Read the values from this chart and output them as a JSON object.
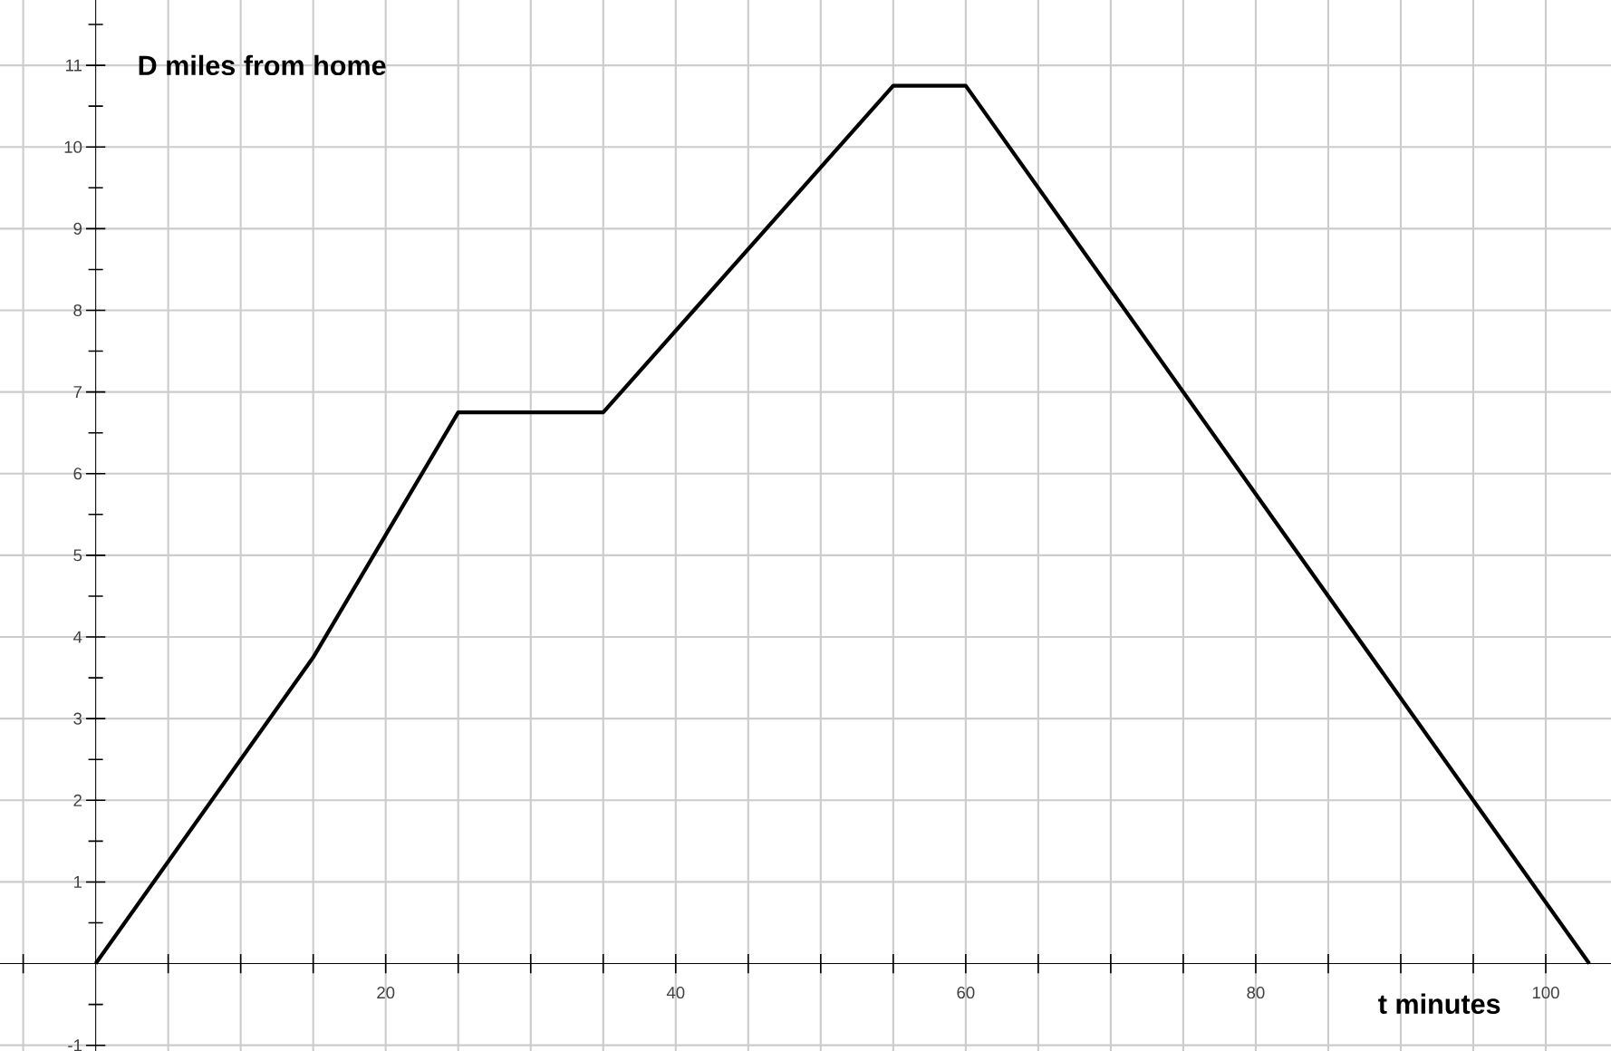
{
  "chart_data": {
    "type": "line",
    "xlabel": "t minutes",
    "ylabel": "D miles from home",
    "x": [
      0,
      15,
      25,
      35,
      55,
      60,
      103
    ],
    "series": [
      {
        "color": "#000000",
        "values": [
          0,
          3.75,
          6.75,
          6.75,
          10.75,
          10.75,
          0
        ]
      }
    ],
    "xlim": [
      -6.6,
      104.5
    ],
    "ylim": [
      -1.07,
      11.8
    ],
    "xticks": [
      {
        "value": -5,
        "label": null
      },
      {
        "value": 5,
        "label": null
      },
      {
        "value": 10,
        "label": null
      },
      {
        "value": 15,
        "label": null
      },
      20,
      {
        "value": 25,
        "label": null
      },
      {
        "value": 30,
        "label": null
      },
      {
        "value": 35,
        "label": null
      },
      40,
      {
        "value": 45,
        "label": null
      },
      {
        "value": 50,
        "label": null
      },
      {
        "value": 55,
        "label": null
      },
      60,
      {
        "value": 65,
        "label": null
      },
      {
        "value": 70,
        "label": null
      },
      {
        "value": 75,
        "label": null
      },
      80,
      {
        "value": 85,
        "label": null
      },
      {
        "value": 90,
        "label": null
      },
      {
        "value": 95,
        "label": null
      },
      100
    ],
    "yticks": [
      -1,
      {
        "value": -0.5,
        "label": null
      },
      {
        "value": 0.5,
        "label": null
      },
      1,
      {
        "value": 1.5,
        "label": null
      },
      2,
      {
        "value": 2.5,
        "label": null
      },
      3,
      {
        "value": 3.5,
        "label": null
      },
      4,
      {
        "value": 4.5,
        "label": null
      },
      5,
      {
        "value": 5.5,
        "label": null
      },
      6,
      {
        "value": 6.5,
        "label": null
      },
      7,
      {
        "value": 7.5,
        "label": null
      },
      8,
      {
        "value": 8.5,
        "label": null
      },
      9,
      {
        "value": 9.5,
        "label": null
      },
      10,
      {
        "value": 10.5,
        "label": null
      },
      11,
      {
        "value": 11.5,
        "label": null
      }
    ],
    "grid": true,
    "marker": "none",
    "line_style": "solid"
  }
}
